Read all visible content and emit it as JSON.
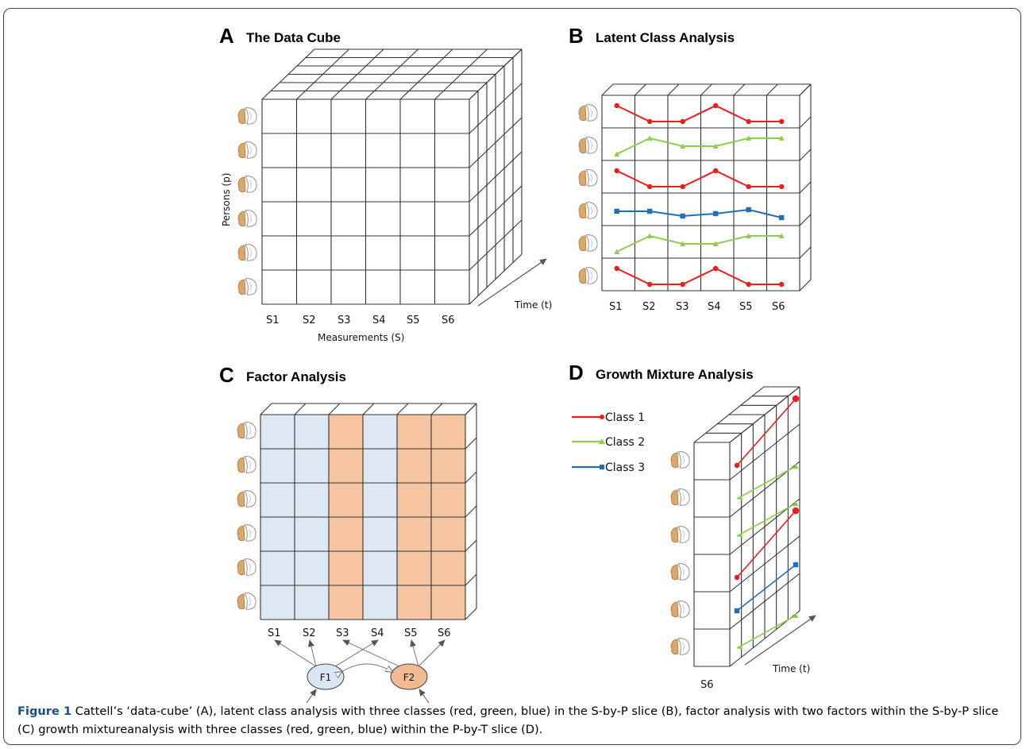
{
  "panels": {
    "A": {
      "letter": "A",
      "title": "The Data Cube",
      "measures": [
        "S1",
        "S2",
        "S3",
        "S4",
        "S5",
        "S6"
      ],
      "xlabel": "Measurements (S)",
      "ylabel": "Persons (p)",
      "zlabel": "Time (t)"
    },
    "B": {
      "letter": "B",
      "title": "Latent Class Analysis",
      "measures": [
        "S1",
        "S2",
        "S3",
        "S4",
        "S5",
        "S6"
      ],
      "rows": [
        {
          "class": "Class 1",
          "values": [
            3,
            1,
            1,
            3,
            1,
            1
          ]
        },
        {
          "class": "Class 2",
          "values": [
            1,
            3,
            2,
            2,
            3,
            3
          ]
        },
        {
          "class": "Class 1",
          "values": [
            3,
            1,
            1,
            3,
            1,
            1
          ]
        },
        {
          "class": "Class 3",
          "values": [
            2,
            2,
            1.4,
            1.7,
            2.2,
            1.2
          ]
        },
        {
          "class": "Class 2",
          "values": [
            1,
            3,
            2,
            2,
            3,
            3
          ]
        },
        {
          "class": "Class 1",
          "values": [
            3,
            1,
            1,
            3,
            1,
            1
          ]
        }
      ]
    },
    "C": {
      "letter": "C",
      "title": "Factor Analysis",
      "measures": [
        "S1",
        "S2",
        "S3",
        "S4",
        "S5",
        "S6"
      ],
      "column_factor": [
        "F1",
        "F1",
        "F2",
        "F1",
        "F2",
        "F2"
      ],
      "factors": [
        "F1",
        "F2"
      ]
    },
    "D": {
      "letter": "D",
      "title": "Growth Mixture Analysis",
      "slice_label": "S6",
      "zlabel": "Time (t)",
      "rows": [
        "Class 1",
        "Class 2",
        "Class 2",
        "Class 1",
        "Class 3",
        "Class 2"
      ]
    }
  },
  "legend": [
    {
      "name": "Class 1",
      "color": "#ee1c1c",
      "marker": "circle"
    },
    {
      "name": "Class 2",
      "color": "#8ccf4d",
      "marker": "triangle"
    },
    {
      "name": "Class 3",
      "color": "#1f6fb8",
      "marker": "square"
    }
  ],
  "colors": {
    "f1_fill": "#dde8f2",
    "f2_fill": "#f6c6a2",
    "f1_ellipse": "#dae6f1",
    "f2_ellipse": "#f2ba91",
    "grid": "#333333"
  },
  "caption": {
    "label": "Figure 1",
    "text": " Cattell’s ‘data-cube’ (A), latent class analysis with three classes (red, green, blue) in the S-by-P slice (B), factor analysis with two factors within the S-by-P slice (C) growth mixtureanalysis with three classes (red, green, blue) within the P-by-T slice (D)."
  }
}
